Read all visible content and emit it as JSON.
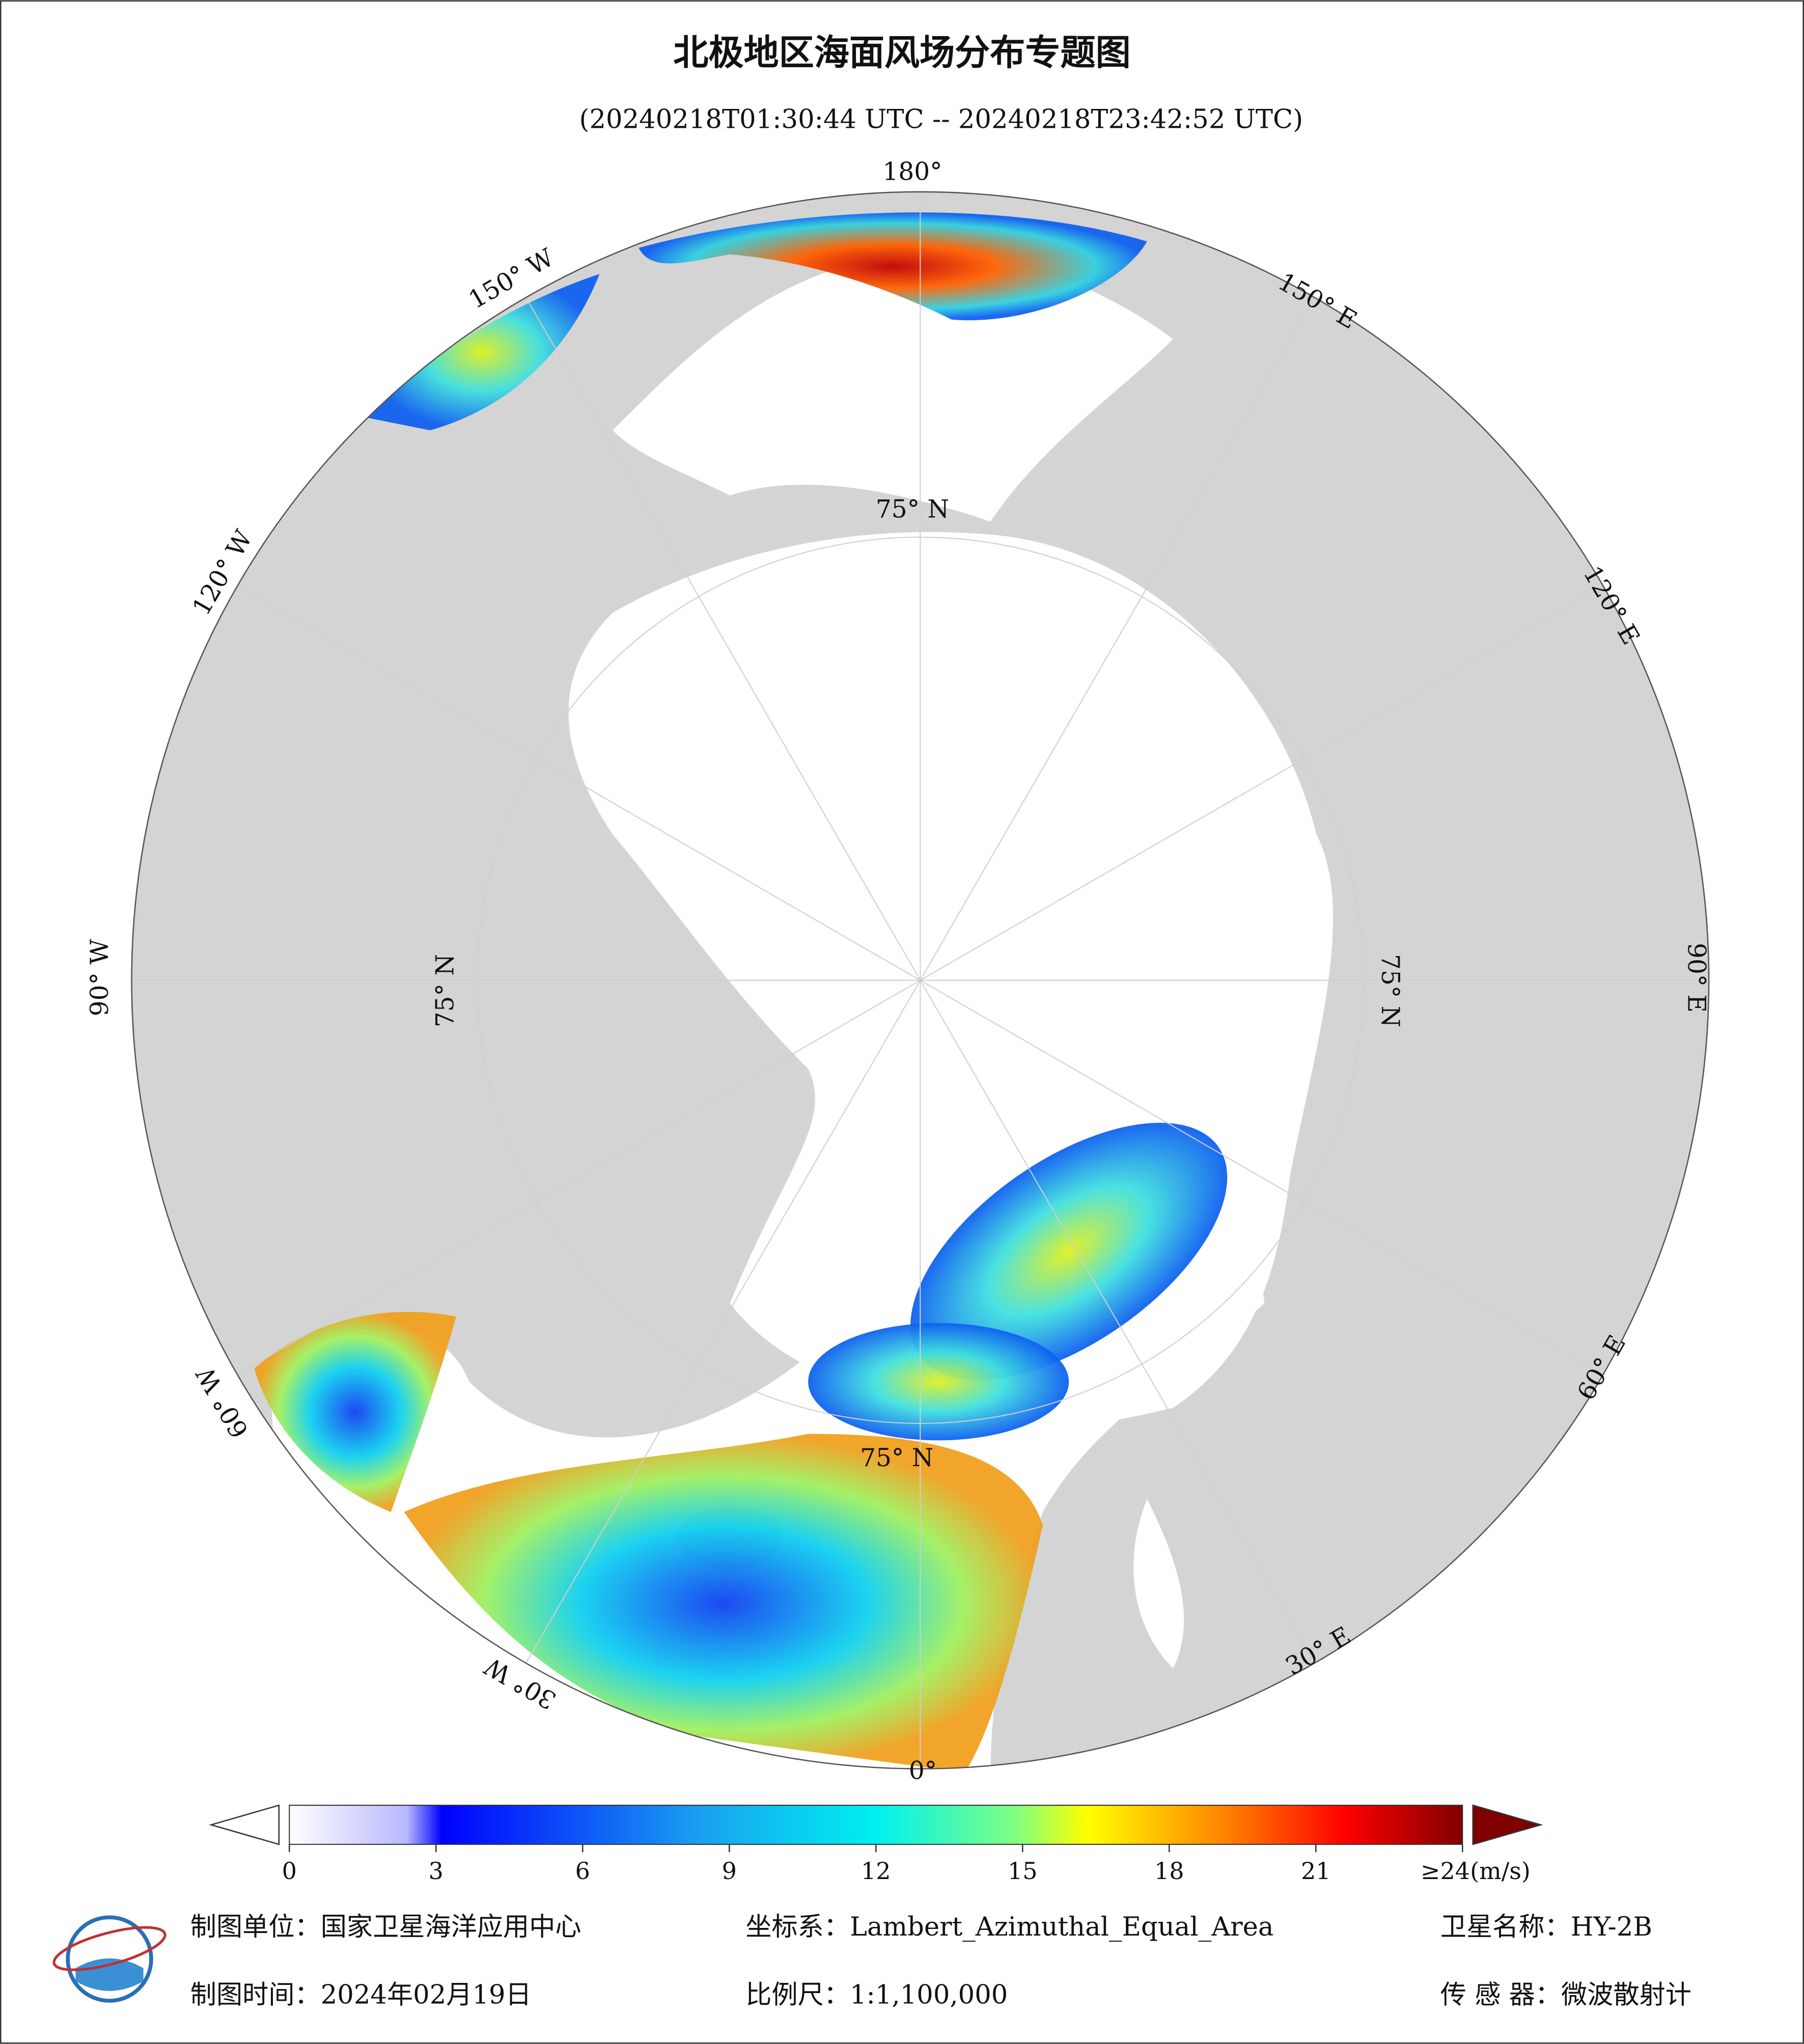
{
  "header": {
    "title": "北极地区海面风场分布专题图",
    "subtitle": "(20240218T01:30:44 UTC -- 20240218T23:42:52 UTC)"
  },
  "map": {
    "graticule_labels": [
      "180°",
      "150° W",
      "120° W",
      "90° W",
      "60° W",
      "30° W",
      "0°",
      "30° E",
      "60° E",
      "90° E",
      "120° E",
      "150° E",
      "75° N",
      "75° N",
      "75° N",
      "75° N"
    ]
  },
  "colorbar": {
    "range": [
      0,
      24
    ],
    "ticks": [
      0,
      3,
      6,
      9,
      12,
      15,
      18,
      21,
      {
        "value": 24,
        "label": "≥24(m/s)"
      }
    ]
  },
  "footer": {
    "rows": [
      [
        "制图单位：国家卫星海洋应用中心",
        "坐标系：Lambert_Azimuthal_Equal_Area",
        "卫星名称：HY-2B"
      ],
      [
        "制图时间：2024年02月19日",
        "比例尺：1:1,100,000",
        "传 感 器：微波散射计"
      ]
    ]
  }
}
